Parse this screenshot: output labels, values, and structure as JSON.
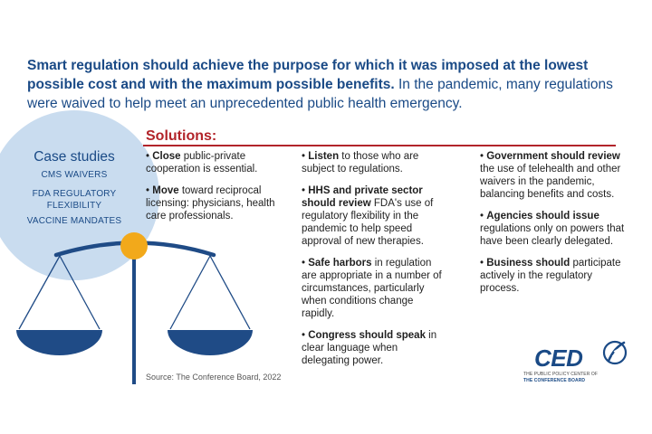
{
  "headline": {
    "bold": "Smart regulation should achieve the purpose for which it was imposed at the lowest possible cost and with the maximum possible benefits.",
    "regular": " In the pandemic, many regulations were waived to help meet an unprecedented public health emergency."
  },
  "case_studies": {
    "title": "Case studies",
    "items": [
      "CMS WAIVERS",
      "FDA REGULATORY FLEXIBILITY",
      "VACCINE MANDATES"
    ]
  },
  "solutions": {
    "title": "Solutions:",
    "columns": [
      [
        {
          "bold": "Close",
          "text": " public-private cooperation is essential."
        },
        {
          "bold": "Move",
          "text": " toward reciprocal licensing: physicians, health care professionals."
        }
      ],
      [
        {
          "bold": "Listen",
          "text": " to those who are subject to regulations."
        },
        {
          "bold": "HHS and private sector should review",
          "text": " FDA's use of regulatory flexibility in the pandemic to help speed approval of new therapies."
        },
        {
          "bold": "Safe harbors",
          "text": " in regulation are appropriate in a number of circumstances, particularly when conditions change rapidly."
        },
        {
          "bold": "Congress should speak",
          "text": " in clear language when delegating power."
        }
      ],
      [
        {
          "bold": "Government should review",
          "text": " the use of telehealth and other waivers in the pandemic, balancing benefits and costs."
        },
        {
          "bold": "Agencies should issue",
          "text": " regulations only on powers that have been clearly delegated."
        },
        {
          "bold": "Business should",
          "text": " participate actively in the regulatory process."
        }
      ]
    ]
  },
  "source": "Source: The Conference Board, 2022",
  "logo": {
    "name": "CED",
    "line1": "THE PUBLIC POLICY CENTER OF",
    "line2": "THE CONFERENCE BOARD"
  },
  "colors": {
    "navy": "#1a4a86",
    "scale_blue": "#1f4b86",
    "red": "#b2242a",
    "gold": "#f2a91b",
    "circle": "#c9dcef"
  },
  "icons": [
    "balance-scale-icon",
    "ced-logo-mark-icon"
  ]
}
